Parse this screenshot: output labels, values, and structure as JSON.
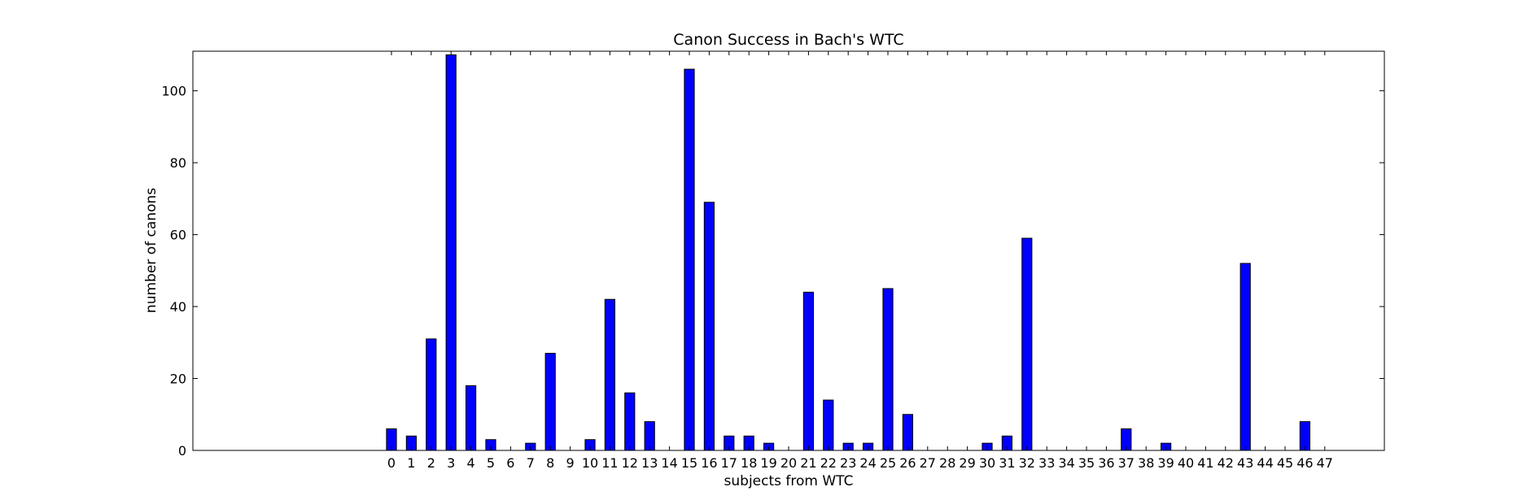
{
  "chart_data": {
    "type": "bar",
    "title": "Canon Success in Bach's WTC",
    "xlabel": "subjects from WTC",
    "ylabel": "number of canons",
    "categories": [
      "0",
      "1",
      "2",
      "3",
      "4",
      "5",
      "6",
      "7",
      "8",
      "9",
      "10",
      "11",
      "12",
      "13",
      "14",
      "15",
      "16",
      "17",
      "18",
      "19",
      "20",
      "21",
      "22",
      "23",
      "24",
      "25",
      "26",
      "27",
      "28",
      "29",
      "30",
      "31",
      "32",
      "33",
      "34",
      "35",
      "36",
      "37",
      "38",
      "39",
      "40",
      "41",
      "42",
      "43",
      "44",
      "45",
      "46",
      "47"
    ],
    "values": [
      6,
      4,
      31,
      110,
      18,
      3,
      0,
      2,
      27,
      0,
      3,
      42,
      16,
      8,
      0,
      106,
      69,
      4,
      4,
      2,
      0,
      44,
      14,
      2,
      2,
      45,
      10,
      0,
      0,
      0,
      2,
      4,
      59,
      0,
      0,
      0,
      0,
      6,
      0,
      2,
      0,
      0,
      0,
      52,
      0,
      0,
      8,
      0
    ],
    "ylim": [
      0,
      111
    ],
    "yticks": [
      0,
      20,
      40,
      60,
      80,
      100
    ],
    "x_range": [
      -10,
      50
    ],
    "grid": false,
    "bar_color": "#0000ff",
    "edge_color": "#000000"
  }
}
